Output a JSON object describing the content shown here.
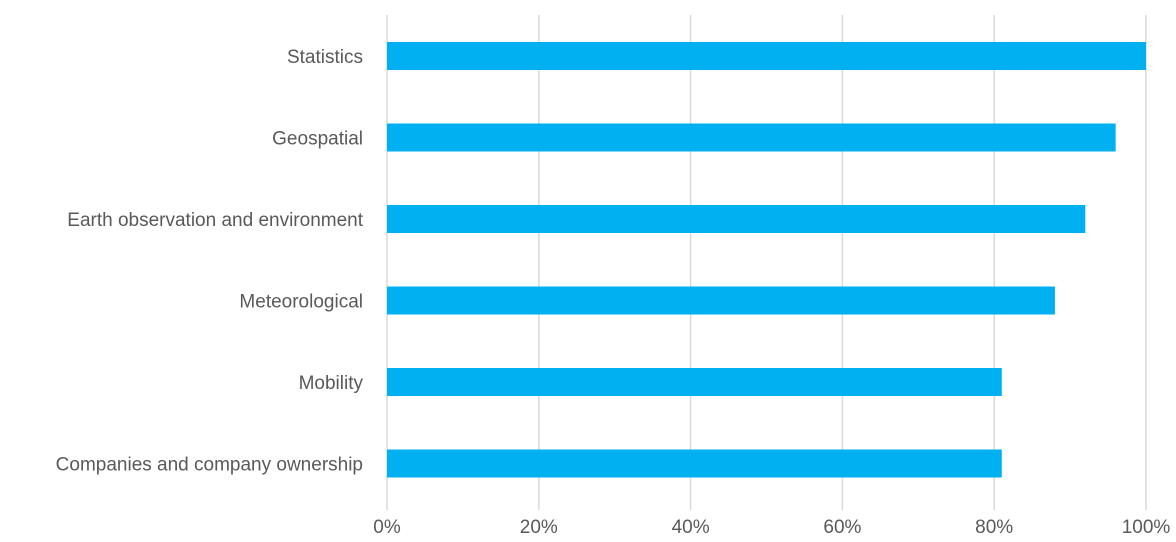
{
  "chart_data": {
    "type": "bar",
    "orientation": "horizontal",
    "categories": [
      "Statistics",
      "Geospatial",
      "Earth observation and environment",
      "Meteorological",
      "Mobility",
      "Companies and company ownership"
    ],
    "values": [
      100,
      96,
      92,
      88,
      81,
      81
    ],
    "xlim": [
      0,
      100
    ],
    "x_ticks": [
      "0%",
      "20%",
      "40%",
      "60%",
      "80%",
      "100%"
    ],
    "grid": true,
    "legend": "none",
    "bar_color": "#00b0f0",
    "title": "",
    "xlabel": "",
    "ylabel": ""
  }
}
